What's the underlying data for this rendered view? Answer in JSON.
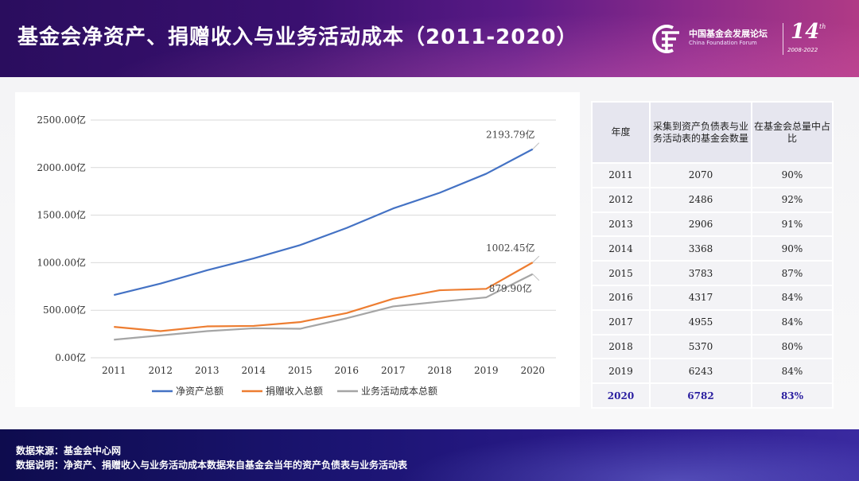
{
  "header": {
    "title": "基金会净资产、捐赠收入与业务活动成本（2011-2020）",
    "logo_cn": "中国基金会发展论坛",
    "logo_en": "China Foundation Forum",
    "logo_number": "14",
    "logo_sup": "th",
    "logo_years": "2008-2022"
  },
  "chart_data": {
    "type": "line",
    "x": [
      "2011",
      "2012",
      "2013",
      "2014",
      "2015",
      "2016",
      "2017",
      "2018",
      "2019",
      "2020"
    ],
    "y_ticks": [
      "0.00亿",
      "500.00亿",
      "1000.00亿",
      "1500.00亿",
      "2000.00亿",
      "2500.00亿"
    ],
    "ylim": [
      0,
      2500
    ],
    "grid": true,
    "legend": "bottom",
    "series": [
      {
        "name": "净资产总额",
        "color": "#4472c4",
        "values": [
          660,
          780,
          920,
          1045,
          1185,
          1365,
          1570,
          1735,
          1935,
          2193.79
        ],
        "end_label": "2193.79亿"
      },
      {
        "name": "捐赠收入总额",
        "color": "#ed7d31",
        "values": [
          325,
          280,
          330,
          335,
          375,
          470,
          620,
          710,
          725,
          1002.45
        ],
        "end_label": "1002.45亿"
      },
      {
        "name": "业务活动成本总额",
        "color": "#a5a5a5",
        "values": [
          190,
          235,
          280,
          310,
          305,
          415,
          540,
          590,
          635,
          879.9
        ],
        "end_label": "879.90亿"
      }
    ]
  },
  "table": {
    "headers": [
      "年度",
      "采集到资产负债表与业务活动表的基金会数量",
      "在基金会总量中占比"
    ],
    "rows": [
      [
        "2011",
        "2070",
        "90%"
      ],
      [
        "2012",
        "2486",
        "92%"
      ],
      [
        "2013",
        "2906",
        "91%"
      ],
      [
        "2014",
        "3368",
        "90%"
      ],
      [
        "2015",
        "3783",
        "87%"
      ],
      [
        "2016",
        "4317",
        "84%"
      ],
      [
        "2017",
        "4955",
        "84%"
      ],
      [
        "2018",
        "5370",
        "80%"
      ],
      [
        "2019",
        "6243",
        "84%"
      ],
      [
        "2020",
        "6782",
        "83%"
      ]
    ],
    "highlight_color": "#2a1ea0"
  },
  "footer": {
    "source": "数据来源：基金会中心网",
    "note": "数据说明：净资产、捐赠收入与业务活动成本数据来自基金会当年的资产负债表与业务活动表"
  }
}
